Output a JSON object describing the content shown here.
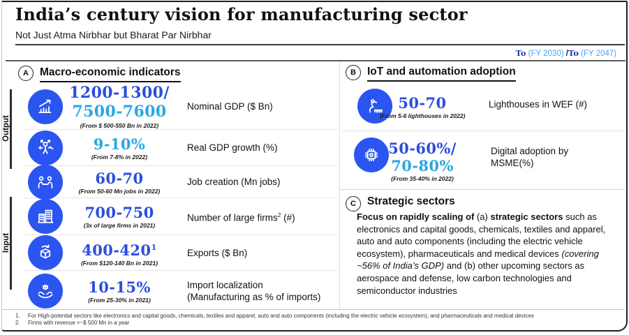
{
  "colors": {
    "blue": "#2b4de0",
    "cyan": "#2aa7e2",
    "navy": "#1d3cb2",
    "lightblue": "#46a3fa",
    "circle": "#2b55f0"
  },
  "header": {
    "title": "India’s century vision for manufacturing sector",
    "subtitle": "Not Just Atma Nirbhar but Bharat Par Nirbhar",
    "timeline": {
      "to1": "To",
      "fy1": " (FY 2030) ",
      "sep": "/",
      "to2": "To",
      "fy2": " (FY 2047)"
    }
  },
  "sections": {
    "a": {
      "badge": "A",
      "title": "Macro-economic indicators"
    },
    "b": {
      "badge": "B",
      "title": "IoT and automation adoption"
    },
    "c": {
      "badge": "C",
      "title": "Strategic sectors"
    }
  },
  "groups": {
    "output": "Output",
    "input": "Input"
  },
  "macro_rows": [
    {
      "icon": "growth-chart-icon",
      "value_runs": [
        {
          "t": "1200-1300/",
          "c": "blue"
        }
      ],
      "value2_runs": [
        {
          "t": "7500-7600",
          "c": "cyan"
        }
      ],
      "from": "(From $ 500-550 Bn in 2022)",
      "label_runs": [
        {
          "t": "Nominal GDP ($ Bn)"
        }
      ]
    },
    {
      "icon": "person-arrows-icon",
      "value_runs": [
        {
          "t": "9-10%",
          "c": "cyan"
        }
      ],
      "from": "(From 7-8% in 2022)",
      "label_runs": [
        {
          "t": "Real GDP growth (%)"
        }
      ]
    },
    {
      "icon": "people-meeting-icon",
      "value_runs": [
        {
          "t": "60-70",
          "c": "blue"
        }
      ],
      "from": "(From 50-60 Mn jobs in 2022)",
      "label_runs": [
        {
          "t": "Job creation (Mn jobs)"
        }
      ]
    },
    {
      "icon": "buildings-icon",
      "value_runs": [
        {
          "t": "700-750",
          "c": "blue"
        }
      ],
      "from": "(3x of large firms in 2021)",
      "label_runs": [
        {
          "t": "Number of large firms"
        },
        {
          "t": "2",
          "sup": true
        },
        {
          "t": " (#)"
        }
      ]
    },
    {
      "icon": "export-box-icon",
      "value_runs": [
        {
          "t": "400-420",
          "c": "blue"
        },
        {
          "t": "1",
          "c": "blue",
          "sup": true
        }
      ],
      "from": "(From $120-140 Bn in 2021)",
      "label_runs": [
        {
          "t": "Exports ($ Bn)"
        }
      ]
    },
    {
      "icon": "hands-box-icon",
      "value_runs": [
        {
          "t": "10-15%",
          "c": "blue"
        }
      ],
      "from": "(From 25-30% in 2021)",
      "label_runs": [
        {
          "t": "Import localization"
        },
        {
          "br": true
        },
        {
          "t": "(Manufacturing as % of imports)"
        }
      ]
    }
  ],
  "iot_rows": [
    {
      "icon": "robot-arm-icon",
      "value_runs": [
        {
          "t": "50-70",
          "c": "blue"
        }
      ],
      "from": "(From 5-6 lighthouses in 2022)",
      "label_runs": [
        {
          "t": "Lighthouses in WEF (#)"
        }
      ]
    },
    {
      "icon": "chip-icon",
      "value_runs": [
        {
          "t": "50-60%/",
          "c": "blue"
        }
      ],
      "value2_runs": [
        {
          "t": "70-80%",
          "c": "cyan"
        }
      ],
      "from": "(From 35-40% in 2022)",
      "label_runs": [
        {
          "t": "Digital adoption by MSME(%)"
        }
      ]
    }
  ],
  "strategic": {
    "body_runs": [
      {
        "t": "Focus on rapidly scaling of ",
        "b": true
      },
      {
        "t": "(a) "
      },
      {
        "t": "strategic sectors",
        "b": true
      },
      {
        "t": " such as electronics and capital goods, chemicals, textiles and apparel, auto and auto components (including the electric vehicle ecosystem), pharmaceuticals and medical devices "
      },
      {
        "t": "(covering ~56% of India’s GDP)",
        "i": true
      },
      {
        "t": " and (b) other upcoming sectors as aerospace and defense, low carbon technologies and semiconductor industries"
      }
    ]
  },
  "footnotes": [
    {
      "num": "1.",
      "text": "For High-potential sectors like electronics and capital goods, chemicals, textiles and apparel, auto and auto components (including the electric vehicle ecosystem), and pharmaceuticals and medical devices"
    },
    {
      "num": "2.",
      "text": "Firms with revenue >~$ 500 Mn in a year"
    }
  ]
}
